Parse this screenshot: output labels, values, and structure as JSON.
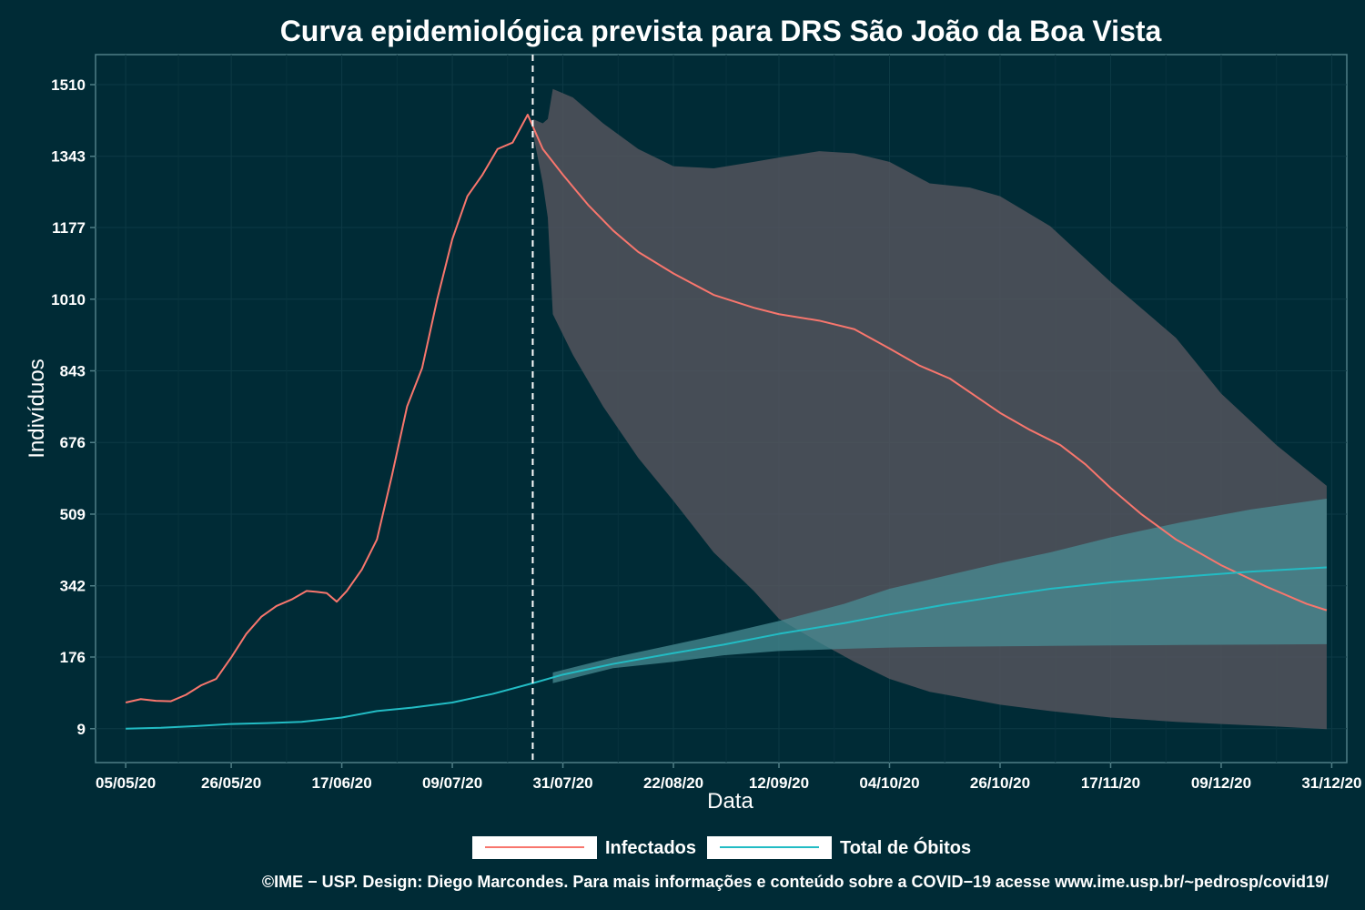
{
  "chart_data": {
    "type": "line",
    "title": "Curva epidemiológica prevista para DRS São João da Boa Vista",
    "xlabel": "Data",
    "ylabel": "Indivíduos",
    "x_range": [
      "2020-04-29",
      "2021-01-03"
    ],
    "ylim": [
      -70,
      1580
    ],
    "y_ticks": [
      9,
      176,
      342,
      509,
      676,
      843,
      1010,
      1177,
      1343,
      1510
    ],
    "x_ticks": [
      {
        "date": "2020-05-05",
        "label": "05/05/20"
      },
      {
        "date": "2020-05-26",
        "label": "26/05/20"
      },
      {
        "date": "2020-06-17",
        "label": "17/06/20"
      },
      {
        "date": "2020-07-09",
        "label": "09/07/20"
      },
      {
        "date": "2020-07-31",
        "label": "31/07/20"
      },
      {
        "date": "2020-08-22",
        "label": "22/08/20"
      },
      {
        "date": "2020-09-12",
        "label": "12/09/20"
      },
      {
        "date": "2020-10-04",
        "label": "04/10/20"
      },
      {
        "date": "2020-10-26",
        "label": "26/10/20"
      },
      {
        "date": "2020-11-17",
        "label": "17/11/20"
      },
      {
        "date": "2020-12-09",
        "label": "09/12/20"
      },
      {
        "date": "2020-12-31",
        "label": "31/12/20"
      }
    ],
    "grid": true,
    "forecast_start": "2020-07-25",
    "legend_position": "bottom",
    "series": [
      {
        "name": "Infectados",
        "color": "#f8766d",
        "points": [
          [
            "2020-05-05",
            70
          ],
          [
            "2020-05-08",
            78
          ],
          [
            "2020-05-11",
            74
          ],
          [
            "2020-05-14",
            73
          ],
          [
            "2020-05-17",
            88
          ],
          [
            "2020-05-20",
            110
          ],
          [
            "2020-05-23",
            125
          ],
          [
            "2020-05-26",
            175
          ],
          [
            "2020-05-29",
            230
          ],
          [
            "2020-06-01",
            270
          ],
          [
            "2020-06-04",
            295
          ],
          [
            "2020-06-07",
            310
          ],
          [
            "2020-06-10",
            330
          ],
          [
            "2020-06-12",
            328
          ],
          [
            "2020-06-14",
            325
          ],
          [
            "2020-06-16",
            305
          ],
          [
            "2020-06-18",
            330
          ],
          [
            "2020-06-21",
            380
          ],
          [
            "2020-06-24",
            450
          ],
          [
            "2020-06-27",
            600
          ],
          [
            "2020-06-30",
            760
          ],
          [
            "2020-07-03",
            850
          ],
          [
            "2020-07-06",
            1010
          ],
          [
            "2020-07-09",
            1150
          ],
          [
            "2020-07-12",
            1250
          ],
          [
            "2020-07-15",
            1300
          ],
          [
            "2020-07-18",
            1360
          ],
          [
            "2020-07-21",
            1375
          ],
          [
            "2020-07-24",
            1440
          ],
          [
            "2020-07-27",
            1360
          ],
          [
            "2020-07-31",
            1300
          ],
          [
            "2020-08-05",
            1230
          ],
          [
            "2020-08-10",
            1170
          ],
          [
            "2020-08-15",
            1120
          ],
          [
            "2020-08-22",
            1070
          ],
          [
            "2020-08-30",
            1020
          ],
          [
            "2020-09-07",
            990
          ],
          [
            "2020-09-12",
            975
          ],
          [
            "2020-09-20",
            960
          ],
          [
            "2020-09-27",
            940
          ],
          [
            "2020-10-04",
            895
          ],
          [
            "2020-10-10",
            855
          ],
          [
            "2020-10-16",
            825
          ],
          [
            "2020-10-21",
            785
          ],
          [
            "2020-10-26",
            745
          ],
          [
            "2020-11-01",
            705
          ],
          [
            "2020-11-07",
            670
          ],
          [
            "2020-11-12",
            625
          ],
          [
            "2020-11-17",
            570
          ],
          [
            "2020-11-23",
            510
          ],
          [
            "2020-11-30",
            450
          ],
          [
            "2020-12-09",
            390
          ],
          [
            "2020-12-18",
            340
          ],
          [
            "2020-12-26",
            300
          ],
          [
            "2020-12-30",
            285
          ]
        ],
        "band": [
          [
            "2020-07-25",
            1430,
            1400
          ],
          [
            "2020-07-27",
            1420,
            1280
          ],
          [
            "2020-07-28",
            1430,
            1200
          ],
          [
            "2020-07-29",
            1500,
            975
          ],
          [
            "2020-08-02",
            1480,
            880
          ],
          [
            "2020-08-08",
            1420,
            760
          ],
          [
            "2020-08-15",
            1360,
            640
          ],
          [
            "2020-08-22",
            1320,
            540
          ],
          [
            "2020-08-30",
            1315,
            420
          ],
          [
            "2020-09-07",
            1330,
            330
          ],
          [
            "2020-09-12",
            1340,
            265
          ],
          [
            "2020-09-20",
            1355,
            210
          ],
          [
            "2020-09-27",
            1350,
            165
          ],
          [
            "2020-10-04",
            1330,
            125
          ],
          [
            "2020-10-12",
            1280,
            95
          ],
          [
            "2020-10-20",
            1270,
            78
          ],
          [
            "2020-10-26",
            1250,
            65
          ],
          [
            "2020-11-05",
            1180,
            50
          ],
          [
            "2020-11-17",
            1050,
            35
          ],
          [
            "2020-11-30",
            920,
            25
          ],
          [
            "2020-12-09",
            790,
            20
          ],
          [
            "2020-12-20",
            670,
            14
          ],
          [
            "2020-12-30",
            575,
            8
          ]
        ]
      },
      {
        "name": "Total de Óbitos",
        "color": "#22bcc4",
        "points": [
          [
            "2020-05-05",
            9
          ],
          [
            "2020-05-12",
            11
          ],
          [
            "2020-05-19",
            15
          ],
          [
            "2020-05-26",
            20
          ],
          [
            "2020-06-02",
            22
          ],
          [
            "2020-06-09",
            25
          ],
          [
            "2020-06-17",
            35
          ],
          [
            "2020-06-24",
            50
          ],
          [
            "2020-07-01",
            58
          ],
          [
            "2020-07-09",
            70
          ],
          [
            "2020-07-17",
            90
          ],
          [
            "2020-07-25",
            115
          ],
          [
            "2020-07-31",
            135
          ],
          [
            "2020-08-10",
            160
          ],
          [
            "2020-08-22",
            185
          ],
          [
            "2020-09-01",
            205
          ],
          [
            "2020-09-12",
            230
          ],
          [
            "2020-09-25",
            255
          ],
          [
            "2020-10-04",
            275
          ],
          [
            "2020-10-15",
            298
          ],
          [
            "2020-10-26",
            318
          ],
          [
            "2020-11-05",
            335
          ],
          [
            "2020-11-17",
            350
          ],
          [
            "2020-12-01",
            363
          ],
          [
            "2020-12-15",
            375
          ],
          [
            "2020-12-30",
            385
          ]
        ],
        "band": [
          [
            "2020-07-29",
            140,
            115
          ],
          [
            "2020-08-10",
            175,
            150
          ],
          [
            "2020-08-22",
            205,
            165
          ],
          [
            "2020-09-01",
            230,
            180
          ],
          [
            "2020-09-12",
            260,
            190
          ],
          [
            "2020-09-25",
            300,
            195
          ],
          [
            "2020-10-04",
            335,
            198
          ],
          [
            "2020-10-15",
            365,
            200
          ],
          [
            "2020-10-26",
            395,
            201
          ],
          [
            "2020-11-05",
            420,
            202
          ],
          [
            "2020-11-17",
            455,
            203
          ],
          [
            "2020-12-01",
            490,
            204
          ],
          [
            "2020-12-15",
            520,
            205
          ],
          [
            "2020-12-30",
            545,
            206
          ]
        ]
      }
    ],
    "band_color": "#5a575f",
    "band_color_secondary": "#4a8f96"
  },
  "caption": "©IME − USP. Design: Diego Marcondes. Para mais informações e conteúdo sobre a COVID−19 acesse www.ime.usp.br/~pedrosp/covid19/"
}
